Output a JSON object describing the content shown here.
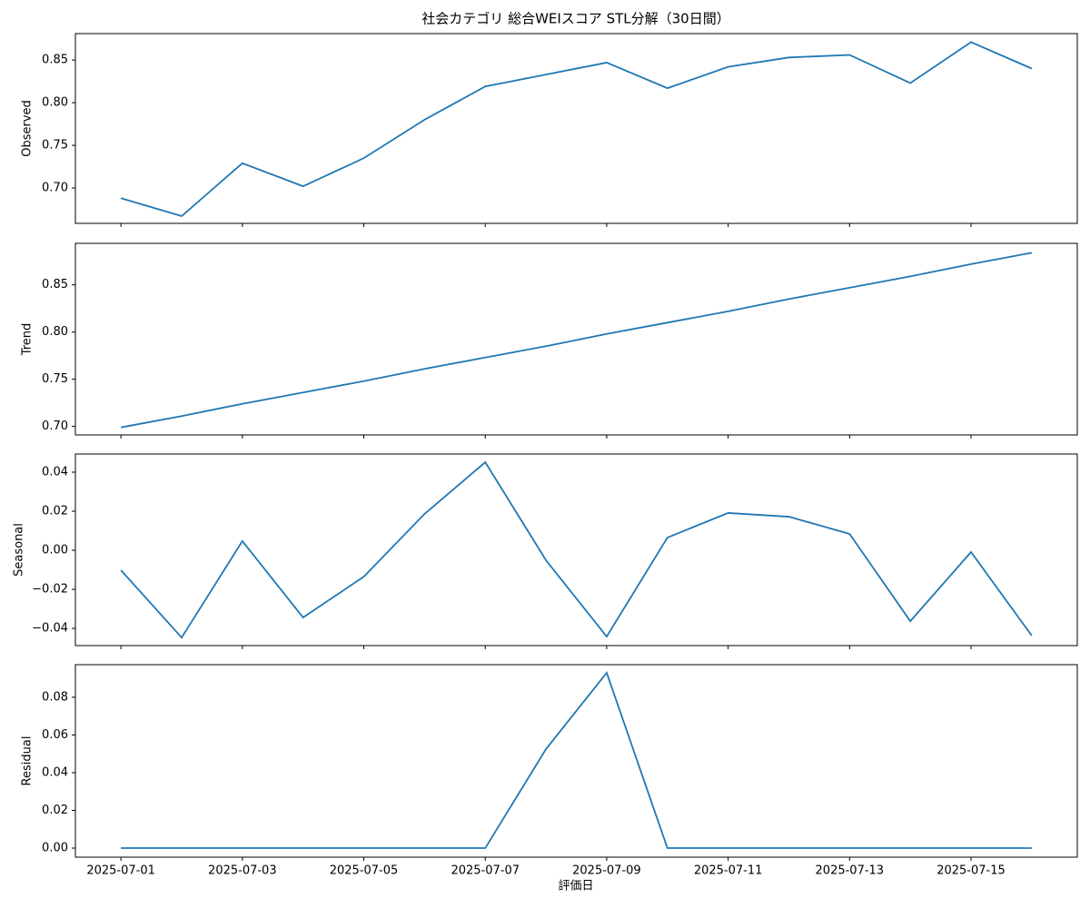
{
  "title": "社会カテゴリ 総合WEIスコア STL分解（30日間）",
  "xlabel": "評価日",
  "chart_data": [
    {
      "type": "line",
      "ylabel": "Observed",
      "color": "#1f77b4",
      "x": [
        "2025-07-01",
        "2025-07-02",
        "2025-07-03",
        "2025-07-04",
        "2025-07-05",
        "2025-07-06",
        "2025-07-07",
        "2025-07-08",
        "2025-07-09",
        "2025-07-10",
        "2025-07-11",
        "2025-07-12",
        "2025-07-13",
        "2025-07-14",
        "2025-07-15",
        "2025-07-16"
      ],
      "values": [
        0.688,
        0.667,
        0.729,
        0.702,
        0.735,
        0.78,
        0.819,
        0.833,
        0.847,
        0.817,
        0.842,
        0.853,
        0.856,
        0.823,
        0.871,
        0.84
      ],
      "ylim": [
        0.6585,
        0.881
      ],
      "yticks": [
        {
          "value": 0.7,
          "label": "0.70"
        },
        {
          "value": 0.75,
          "label": "0.75"
        },
        {
          "value": 0.8,
          "label": "0.80"
        },
        {
          "value": 0.85,
          "label": "0.85"
        }
      ]
    },
    {
      "type": "line",
      "ylabel": "Trend",
      "color": "#1f77b4",
      "x": [
        "2025-07-01",
        "2025-07-02",
        "2025-07-03",
        "2025-07-04",
        "2025-07-05",
        "2025-07-06",
        "2025-07-07",
        "2025-07-08",
        "2025-07-09",
        "2025-07-10",
        "2025-07-11",
        "2025-07-12",
        "2025-07-13",
        "2025-07-14",
        "2025-07-15",
        "2025-07-16"
      ],
      "values": [
        0.699,
        0.711,
        0.724,
        0.736,
        0.748,
        0.761,
        0.773,
        0.785,
        0.798,
        0.81,
        0.822,
        0.835,
        0.847,
        0.859,
        0.872,
        0.884
      ],
      "ylim": [
        0.691,
        0.894
      ],
      "yticks": [
        {
          "value": 0.7,
          "label": "0.70"
        },
        {
          "value": 0.75,
          "label": "0.75"
        },
        {
          "value": 0.8,
          "label": "0.80"
        },
        {
          "value": 0.85,
          "label": "0.85"
        }
      ]
    },
    {
      "type": "line",
      "ylabel": "Seasonal",
      "color": "#1f77b4",
      "x": [
        "2025-07-01",
        "2025-07-02",
        "2025-07-03",
        "2025-07-04",
        "2025-07-05",
        "2025-07-06",
        "2025-07-07",
        "2025-07-08",
        "2025-07-09",
        "2025-07-10",
        "2025-07-11",
        "2025-07-12",
        "2025-07-13",
        "2025-07-14",
        "2025-07-15",
        "2025-07-16"
      ],
      "values": [
        -0.0102,
        -0.0447,
        0.0047,
        -0.0344,
        -0.0135,
        0.0186,
        0.0451,
        -0.0051,
        -0.0442,
        0.0065,
        0.0191,
        0.0172,
        0.0084,
        -0.0363,
        -0.0009,
        -0.0437
      ],
      "ylim": [
        -0.0488,
        0.0493
      ],
      "yticks": [
        {
          "value": -0.04,
          "label": "−0.04"
        },
        {
          "value": -0.02,
          "label": "−0.02"
        },
        {
          "value": 0,
          "label": "0.00"
        },
        {
          "value": 0.02,
          "label": "0.02"
        },
        {
          "value": 0.04,
          "label": "0.04"
        }
      ]
    },
    {
      "type": "line",
      "ylabel": "Residual",
      "color": "#1f77b4",
      "x": [
        "2025-07-01",
        "2025-07-02",
        "2025-07-03",
        "2025-07-04",
        "2025-07-05",
        "2025-07-06",
        "2025-07-07",
        "2025-07-08",
        "2025-07-09",
        "2025-07-10",
        "2025-07-11",
        "2025-07-12",
        "2025-07-13",
        "2025-07-14",
        "2025-07-15",
        "2025-07-16"
      ],
      "values": [
        0,
        0,
        0,
        0,
        0,
        0,
        0,
        0.0525,
        0.093,
        0,
        0,
        0,
        0,
        0,
        0,
        0
      ],
      "ylim": [
        -0.0048,
        0.0973
      ],
      "yticks": [
        {
          "value": 0,
          "label": "0.00"
        },
        {
          "value": 0.02,
          "label": "0.02"
        },
        {
          "value": 0.04,
          "label": "0.04"
        },
        {
          "value": 0.06,
          "label": "0.06"
        },
        {
          "value": 0.08,
          "label": "0.08"
        }
      ],
      "xticks": [
        "2025-07-01",
        "2025-07-03",
        "2025-07-05",
        "2025-07-07",
        "2025-07-09",
        "2025-07-11",
        "2025-07-13",
        "2025-07-15"
      ]
    }
  ]
}
